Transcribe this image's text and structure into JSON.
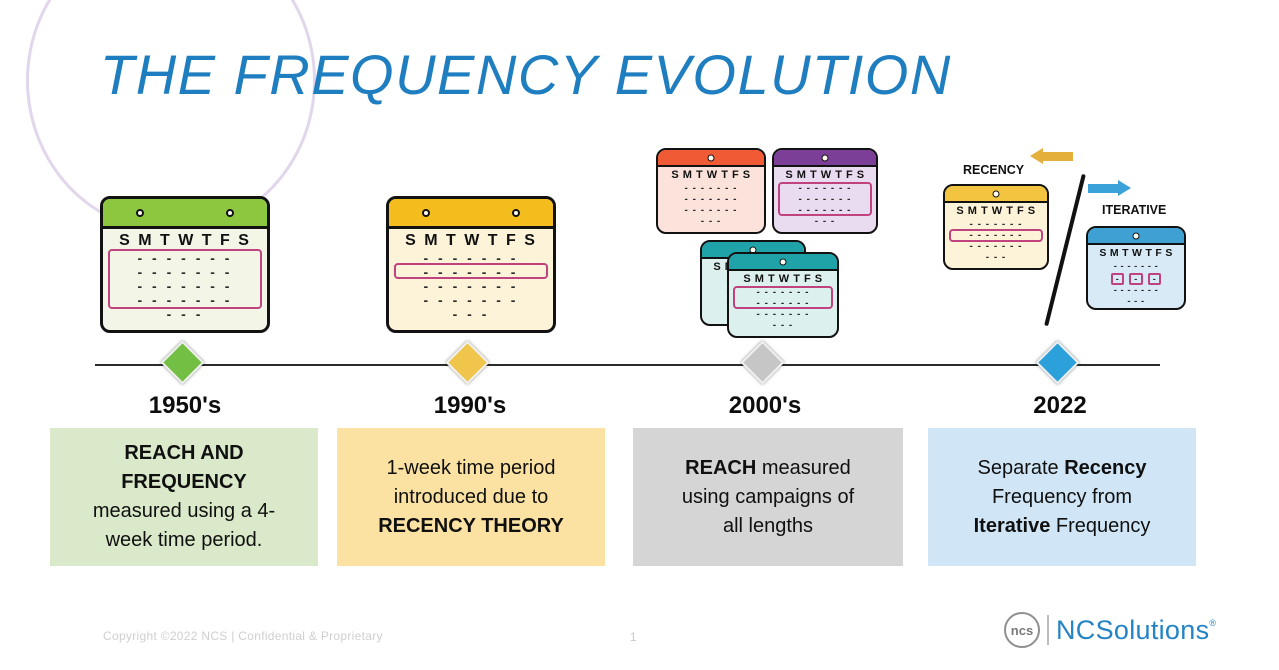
{
  "title": "THE FREQUENCY EVOLUTION",
  "calendar": {
    "day_header": "S M T W T F S",
    "dash_row": "- - - - - - -",
    "dash_row_short": "- - -",
    "dash": "-"
  },
  "annotations": {
    "recency_label": "RECENCY",
    "iterative_label": "ITERATIVE"
  },
  "timeline": {
    "eras": [
      {
        "year": "1950's",
        "marker_color": "#72BF44",
        "box_color": "#D9E9C9",
        "box": {
          "line1": "REACH AND",
          "line2": "FREQUENCY",
          "line3": "measured using a 4-",
          "line4": "week time period."
        }
      },
      {
        "year": "1990's",
        "marker_color": "#EFC54B",
        "box_color": "#FBE2A2",
        "box": {
          "line1": "1-week time period",
          "line2": "introduced due to",
          "line3": "RECENCY THEORY"
        }
      },
      {
        "year": "2000's",
        "marker_color": "#C6C6C6",
        "box_color": "#D5D5D5",
        "box": {
          "line1_bold": "REACH",
          "line1_rest": " measured",
          "line2": "using campaigns of",
          "line3": "all lengths"
        }
      },
      {
        "year": "2022",
        "marker_color": "#2CA0DB",
        "box_color": "#D0E6F6",
        "box": {
          "line1_text": "Separate ",
          "line1_bold": "Recency",
          "line2": "Frequency from",
          "line3_bold": "Iterative",
          "line3_text": " Frequency"
        }
      }
    ]
  },
  "footer": {
    "copyright": "Copyright ©2022 NCS  |  Confidential & Proprietary",
    "page_number": "1",
    "logo_mark_text": "ncs",
    "logo_name": "NCSolutions",
    "logo_registered": "®"
  }
}
